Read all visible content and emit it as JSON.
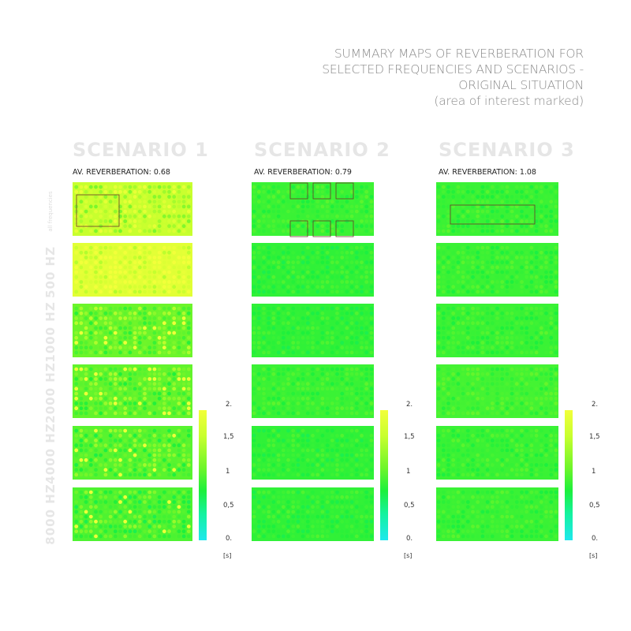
{
  "title_lines": [
    "SUMMARY MAPS OF  REVERBERATION FOR",
    "SELECTED FREQUENCIES  AND SCENARIOS -",
    "ORIGINAL SITUATION",
    "(area of interest  marked)"
  ],
  "frequency_labels": [
    "all frequencies",
    "500 HZ",
    "1000 HZ",
    "2000 HZ",
    "4000 HZ",
    "8000 HZ"
  ],
  "colorbar": {
    "ticks": [
      "2.",
      "1,5",
      "1",
      "0,5",
      "0."
    ],
    "unit": "[s]",
    "colors": [
      "#f2ff3a",
      "#c8ff2e",
      "#6cf52a",
      "#1cf03c",
      "#14f2a0",
      "#1ee8ee"
    ]
  },
  "chart_data": {
    "type": "heatmap",
    "value_range": [
      0,
      2
    ],
    "grid": false,
    "legend": "colorbar",
    "scenarios": [
      {
        "title": "SCENARIO 1",
        "avg_label": "AV. REVERBERATION: 0.68",
        "average": 0.68,
        "map_means": {
          "all frequencies": 1.6,
          "500 HZ": 1.85,
          "1000 HZ": 1.2,
          "2000 HZ": 1.15,
          "4000 HZ": 1.1,
          "8000 HZ": 1.05
        }
      },
      {
        "title": "SCENARIO 2",
        "avg_label": "AV. REVERBERATION: 0.79",
        "average": 0.79,
        "map_means": {
          "all frequencies": 0.95,
          "500 HZ": 0.9,
          "1000 HZ": 0.9,
          "2000 HZ": 0.95,
          "4000 HZ": 0.9,
          "8000 HZ": 0.9
        }
      },
      {
        "title": "SCENARIO 3",
        "avg_label": "AV. REVERBERATION: 1.08",
        "average": 1.08,
        "map_means": {
          "all frequencies": 0.95,
          "500 HZ": 0.95,
          "1000 HZ": 0.95,
          "2000 HZ": 1.0,
          "4000 HZ": 0.95,
          "8000 HZ": 0.95
        }
      }
    ]
  }
}
